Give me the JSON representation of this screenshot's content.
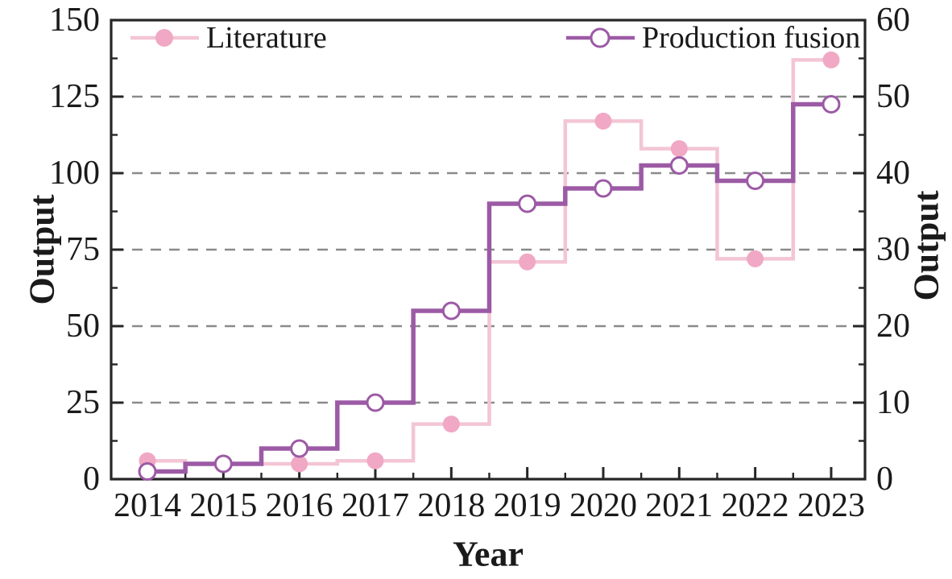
{
  "page": {
    "background": "#ffffff"
  },
  "chart_data": {
    "type": "line",
    "style": "step-mid",
    "title": "",
    "xlabel": "Year",
    "x": [
      2014,
      2015,
      2016,
      2017,
      2018,
      2019,
      2020,
      2021,
      2022,
      2023
    ],
    "x_tick_labels": [
      "2014",
      "2015",
      "2016",
      "2017",
      "2018",
      "2019",
      "2020",
      "2021",
      "2022",
      "2023"
    ],
    "series": [
      {
        "name": "Literature",
        "axis": "left",
        "values": [
          6,
          5,
          5,
          6,
          18,
          71,
          117,
          108,
          72,
          137
        ],
        "line_color": "#F3C5D5",
        "marker": "filled-circle",
        "marker_color": "#F0A8C4"
      },
      {
        "name": "Production fusion",
        "axis": "right",
        "values": [
          1,
          2,
          4,
          10,
          22,
          36,
          38,
          41,
          39,
          49
        ],
        "line_color": "#9C5AA5",
        "marker": "open-circle",
        "marker_color": "#FFFFFF",
        "marker_edge_color": "#9C5AA5"
      }
    ],
    "left_axis": {
      "label": "Output",
      "min": 0,
      "max": 150,
      "tick_step": 25,
      "minor_step": 12.5,
      "tick_labels": [
        "0",
        "25",
        "50",
        "75",
        "100",
        "125",
        "150"
      ]
    },
    "right_axis": {
      "label": "Output",
      "min": 0,
      "max": 60,
      "tick_step": 10,
      "minor_step": 5,
      "tick_labels": [
        "0",
        "10",
        "20",
        "30",
        "40",
        "50",
        "60"
      ]
    },
    "grid": {
      "show": true,
      "color": "#8A8A8A",
      "dash": "13 10",
      "lines_at_left_values": [
        25,
        50,
        75,
        100,
        125
      ]
    },
    "legend": {
      "position": "top-inside",
      "entries": [
        "Literature",
        "Production fusion"
      ]
    },
    "frame_color": "#262626",
    "text_color": "#1a1a1a"
  }
}
